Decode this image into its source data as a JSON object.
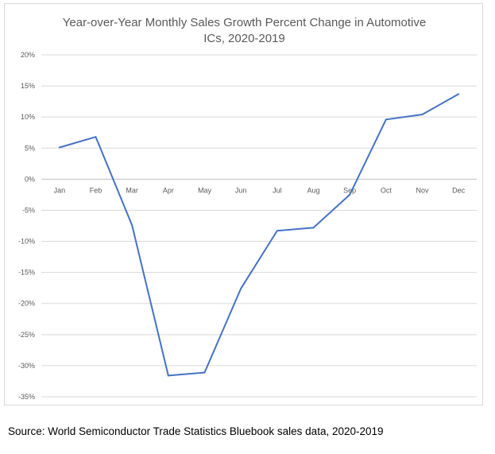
{
  "chart_data": {
    "type": "line",
    "title_lines": [
      "Year-over-Year Monthly Sales Growth Percent Change in Automotive",
      "ICs, 2020-2019"
    ],
    "xlabel": "",
    "ylabel": "",
    "categories": [
      "Jan",
      "Feb",
      "Mar",
      "Apr",
      "May",
      "Jun",
      "Jul",
      "Aug",
      "Sep",
      "Oct",
      "Nov",
      "Dec"
    ],
    "series": [
      {
        "values": [
          5.1,
          6.8,
          -7.4,
          -31.6,
          -31.1,
          -17.6,
          -8.3,
          -7.8,
          -2.5,
          9.6,
          10.4,
          13.7
        ],
        "color": "#4472c4"
      }
    ],
    "ylim": [
      -35,
      20
    ],
    "yticks": [
      20,
      15,
      10,
      5,
      0,
      -5,
      -10,
      -15,
      -20,
      -25,
      -30,
      -35
    ],
    "ytick_labels": [
      "20%",
      "15%",
      "10%",
      "5%",
      "0%",
      "-5%",
      "-10%",
      "-15%",
      "-20%",
      "-25%",
      "-30%",
      "-35%"
    ],
    "grid": true,
    "legend": "none"
  },
  "footer": {
    "source": "Source: World Semiconductor Trade Statistics Bluebook sales data, 2020-2019"
  }
}
